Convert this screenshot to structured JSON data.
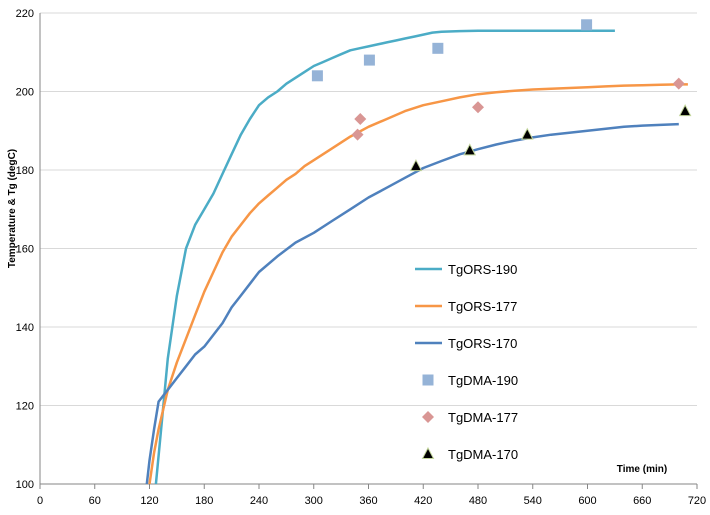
{
  "chart_data": {
    "type": "line",
    "title": "",
    "xlabel": "Time (min)",
    "ylabel": "Temperature & Tg  (degC)",
    "xlim": [
      0,
      720
    ],
    "ylim": [
      100,
      220
    ],
    "xticks": [
      0,
      60,
      120,
      180,
      240,
      300,
      360,
      420,
      480,
      540,
      600,
      660,
      720
    ],
    "yticks": [
      100,
      120,
      140,
      160,
      180,
      200,
      220
    ],
    "grid": "horizontal",
    "legend_position": "right-center",
    "series": [
      {
        "name": "TgORS-190",
        "kind": "line",
        "color": "#4bacc6",
        "x": [
          127,
          132,
          140,
          150,
          160,
          170,
          180,
          190,
          200,
          210,
          220,
          230,
          240,
          250,
          260,
          270,
          280,
          290,
          300,
          310,
          320,
          330,
          340,
          350,
          360,
          370,
          380,
          390,
          400,
          410,
          420,
          430,
          440,
          460,
          480,
          500,
          520,
          540,
          560,
          580,
          600,
          620,
          630
        ],
        "y": [
          100,
          112,
          132,
          148,
          160,
          166,
          170,
          174,
          179,
          184,
          189,
          193,
          196.5,
          198.5,
          200,
          202,
          203.5,
          205,
          206.5,
          207.5,
          208.5,
          209.5,
          210.5,
          211,
          211.5,
          212,
          212.5,
          213,
          213.5,
          214,
          214.5,
          215,
          215.2,
          215.4,
          215.5,
          215.5,
          215.5,
          215.5,
          215.5,
          215.5,
          215.5,
          215.5,
          215.5
        ]
      },
      {
        "name": "TgORS-177",
        "kind": "line",
        "color": "#f79646",
        "x": [
          120,
          125,
          130,
          140,
          150,
          160,
          170,
          180,
          190,
          200,
          210,
          220,
          230,
          240,
          250,
          260,
          270,
          280,
          290,
          300,
          320,
          340,
          360,
          380,
          400,
          420,
          440,
          460,
          480,
          500,
          520,
          540,
          560,
          580,
          600,
          620,
          640,
          660,
          680,
          700,
          710
        ],
        "y": [
          100,
          108,
          114,
          124,
          131,
          137,
          143,
          149,
          154,
          159,
          163,
          166,
          169,
          171.5,
          173.5,
          175.5,
          177.5,
          179,
          181,
          182.5,
          185.5,
          188.5,
          191,
          193,
          195,
          196.5,
          197.5,
          198.5,
          199.3,
          199.8,
          200.2,
          200.5,
          200.7,
          200.9,
          201.1,
          201.3,
          201.5,
          201.6,
          201.7,
          201.8,
          201.8
        ]
      },
      {
        "name": "TgORS-170",
        "kind": "line",
        "color": "#4f81bd",
        "x": [
          117,
          120,
          125,
          130,
          140,
          150,
          160,
          170,
          180,
          190,
          200,
          210,
          220,
          230,
          240,
          260,
          280,
          300,
          320,
          340,
          360,
          380,
          400,
          420,
          440,
          460,
          480,
          500,
          520,
          540,
          560,
          580,
          600,
          620,
          640,
          660,
          680,
          700
        ],
        "y": [
          100,
          106,
          114,
          121,
          124,
          127,
          130,
          133,
          135,
          138,
          141,
          145,
          148,
          151,
          154,
          158,
          161.5,
          164,
          167,
          170,
          173,
          175.5,
          178,
          180.5,
          182.3,
          184,
          185.3,
          186.5,
          187.5,
          188.3,
          189,
          189.5,
          190,
          190.5,
          191,
          191.3,
          191.5,
          191.7
        ]
      },
      {
        "name": "TgDMA-190",
        "kind": "markers",
        "marker": "square",
        "color": "#95b3d7",
        "x": [
          304,
          361,
          436,
          599
        ],
        "y": [
          204,
          208,
          211,
          217
        ]
      },
      {
        "name": "TgDMA-177",
        "kind": "markers",
        "marker": "diamond",
        "color": "#d99694",
        "x": [
          348,
          351,
          480,
          700
        ],
        "y": [
          189,
          193,
          196,
          202
        ]
      },
      {
        "name": "TgDMA-170",
        "kind": "markers",
        "marker": "triangle",
        "color": "#000000",
        "edge": "#c3d69b",
        "x": [
          412,
          471,
          534,
          707
        ],
        "y": [
          181,
          185,
          189,
          195
        ]
      }
    ]
  }
}
